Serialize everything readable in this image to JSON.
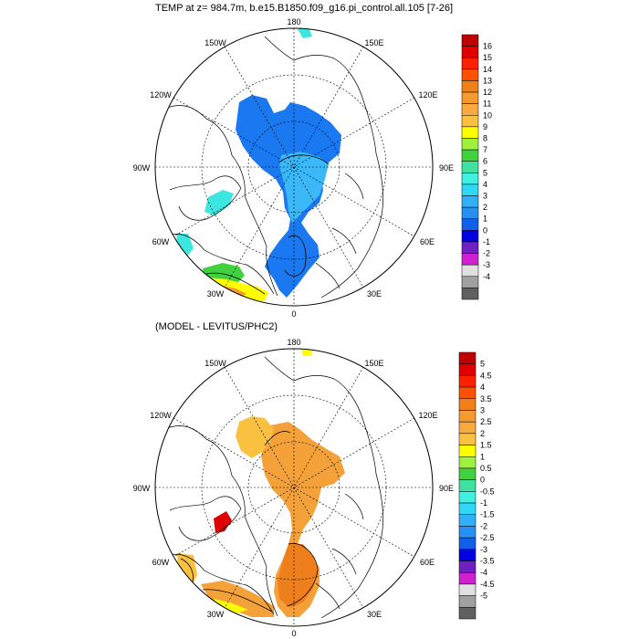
{
  "top_panel": {
    "title": "TEMP at z= 984.7m, b.e15.B1850.f09_g16.pi_control.all.105 [7-26]",
    "lon_labels": [
      "180",
      "150E",
      "120E",
      "90E",
      "60E",
      "30E",
      "0",
      "30W",
      "60W",
      "90W",
      "120W",
      "150W"
    ],
    "colorbar": {
      "labels": [
        "16",
        "15",
        "14",
        "13",
        "12",
        "11",
        "10",
        "9",
        "8",
        "7",
        "6",
        "5",
        "4",
        "3",
        "2",
        "1",
        "0",
        "-1",
        "-2",
        "-3",
        "-4"
      ],
      "colors": [
        "#c00000",
        "#e00000",
        "#ff2000",
        "#ff5000",
        "#f08018",
        "#f59a30",
        "#f8aa40",
        "#fac040",
        "#ffff00",
        "#a0f040",
        "#40d040",
        "#40e0a0",
        "#40f0e0",
        "#30d8f8",
        "#30b0f8",
        "#2890f0",
        "#1060e8",
        "#0000e0",
        "#7020c0",
        "#d020d0",
        "#e0e0e0",
        "#a0a0a0",
        "#606060"
      ]
    }
  },
  "bottom_panel": {
    "title": "(MODEL - LEVITUS/PHC2)",
    "lon_labels": [
      "180",
      "150E",
      "120E",
      "90E",
      "60E",
      "30E",
      "0",
      "30W",
      "60W",
      "90W",
      "120W",
      "150W"
    ],
    "colorbar": {
      "labels": [
        "5",
        "4.5",
        "4",
        "3.5",
        "3",
        "2.5",
        "2",
        "1.5",
        "1",
        "0.5",
        "0",
        "-0.5",
        "-1",
        "-1.5",
        "-2",
        "-2.5",
        "-3",
        "-3.5",
        "-4",
        "-4.5",
        "-5"
      ],
      "colors": [
        "#c00000",
        "#e00000",
        "#ff2000",
        "#ff5000",
        "#f08018",
        "#f59a30",
        "#f8aa40",
        "#fac040",
        "#ffff00",
        "#a0f040",
        "#40d040",
        "#40e0a0",
        "#40f0e0",
        "#30d8f8",
        "#30b0f8",
        "#2890f0",
        "#1060e8",
        "#0000e0",
        "#7020c0",
        "#d020d0",
        "#e0e0e0",
        "#a0a0a0",
        "#606060"
      ]
    }
  },
  "colors": {
    "top_main_blue": "#1a78f0",
    "top_light_blue": "#3ab8f8",
    "top_cyan": "#3ee6e0",
    "bottom_orange": "#f5a13a",
    "bottom_dark_orange": "#ef7f1a",
    "bottom_yellow_orange": "#fac040",
    "bottom_red": "#e00000"
  }
}
